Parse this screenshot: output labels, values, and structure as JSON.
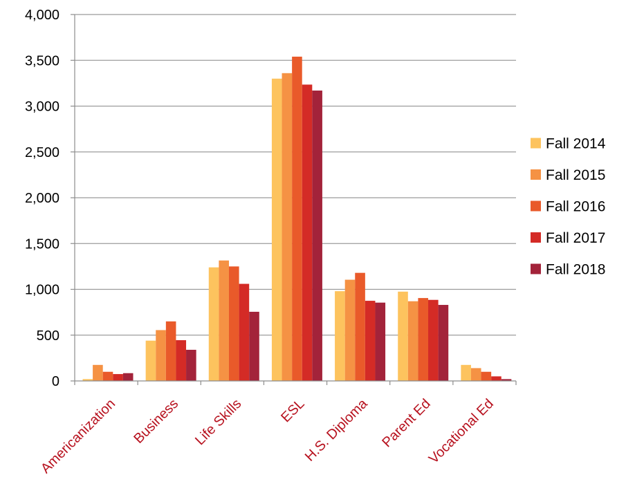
{
  "chart_data": {
    "type": "bar",
    "title": "",
    "xlabel": "",
    "ylabel": "",
    "categories": [
      "Americanization",
      "Business",
      "Life Skills",
      "ESL",
      "H.S. Diploma",
      "Parent Ed",
      "Vocational Ed"
    ],
    "series": [
      {
        "name": "Fall 2014",
        "color": "#FDC35E",
        "values": [
          20,
          440,
          1240,
          3300,
          980,
          975,
          175
        ]
      },
      {
        "name": "Fall 2015",
        "color": "#F59244",
        "values": [
          175,
          555,
          1315,
          3360,
          1105,
          870,
          140
        ]
      },
      {
        "name": "Fall 2016",
        "color": "#E95A2A",
        "values": [
          100,
          650,
          1250,
          3540,
          1180,
          905,
          100
        ]
      },
      {
        "name": "Fall 2017",
        "color": "#D42B26",
        "values": [
          75,
          445,
          1060,
          3235,
          875,
          885,
          50
        ]
      },
      {
        "name": "Fall 2018",
        "color": "#A3233A",
        "values": [
          85,
          340,
          755,
          3170,
          855,
          830,
          20
        ]
      }
    ],
    "ylim": [
      0,
      4000
    ],
    "yticks": [
      0,
      500,
      1000,
      1500,
      2000,
      2500,
      3000,
      3500,
      4000
    ],
    "ytick_labels": [
      "0",
      "500",
      "1,000",
      "1,500",
      "2,000",
      "2,500",
      "3,000",
      "3,500",
      "4,000"
    ],
    "grid": true,
    "legend_position": "right"
  }
}
